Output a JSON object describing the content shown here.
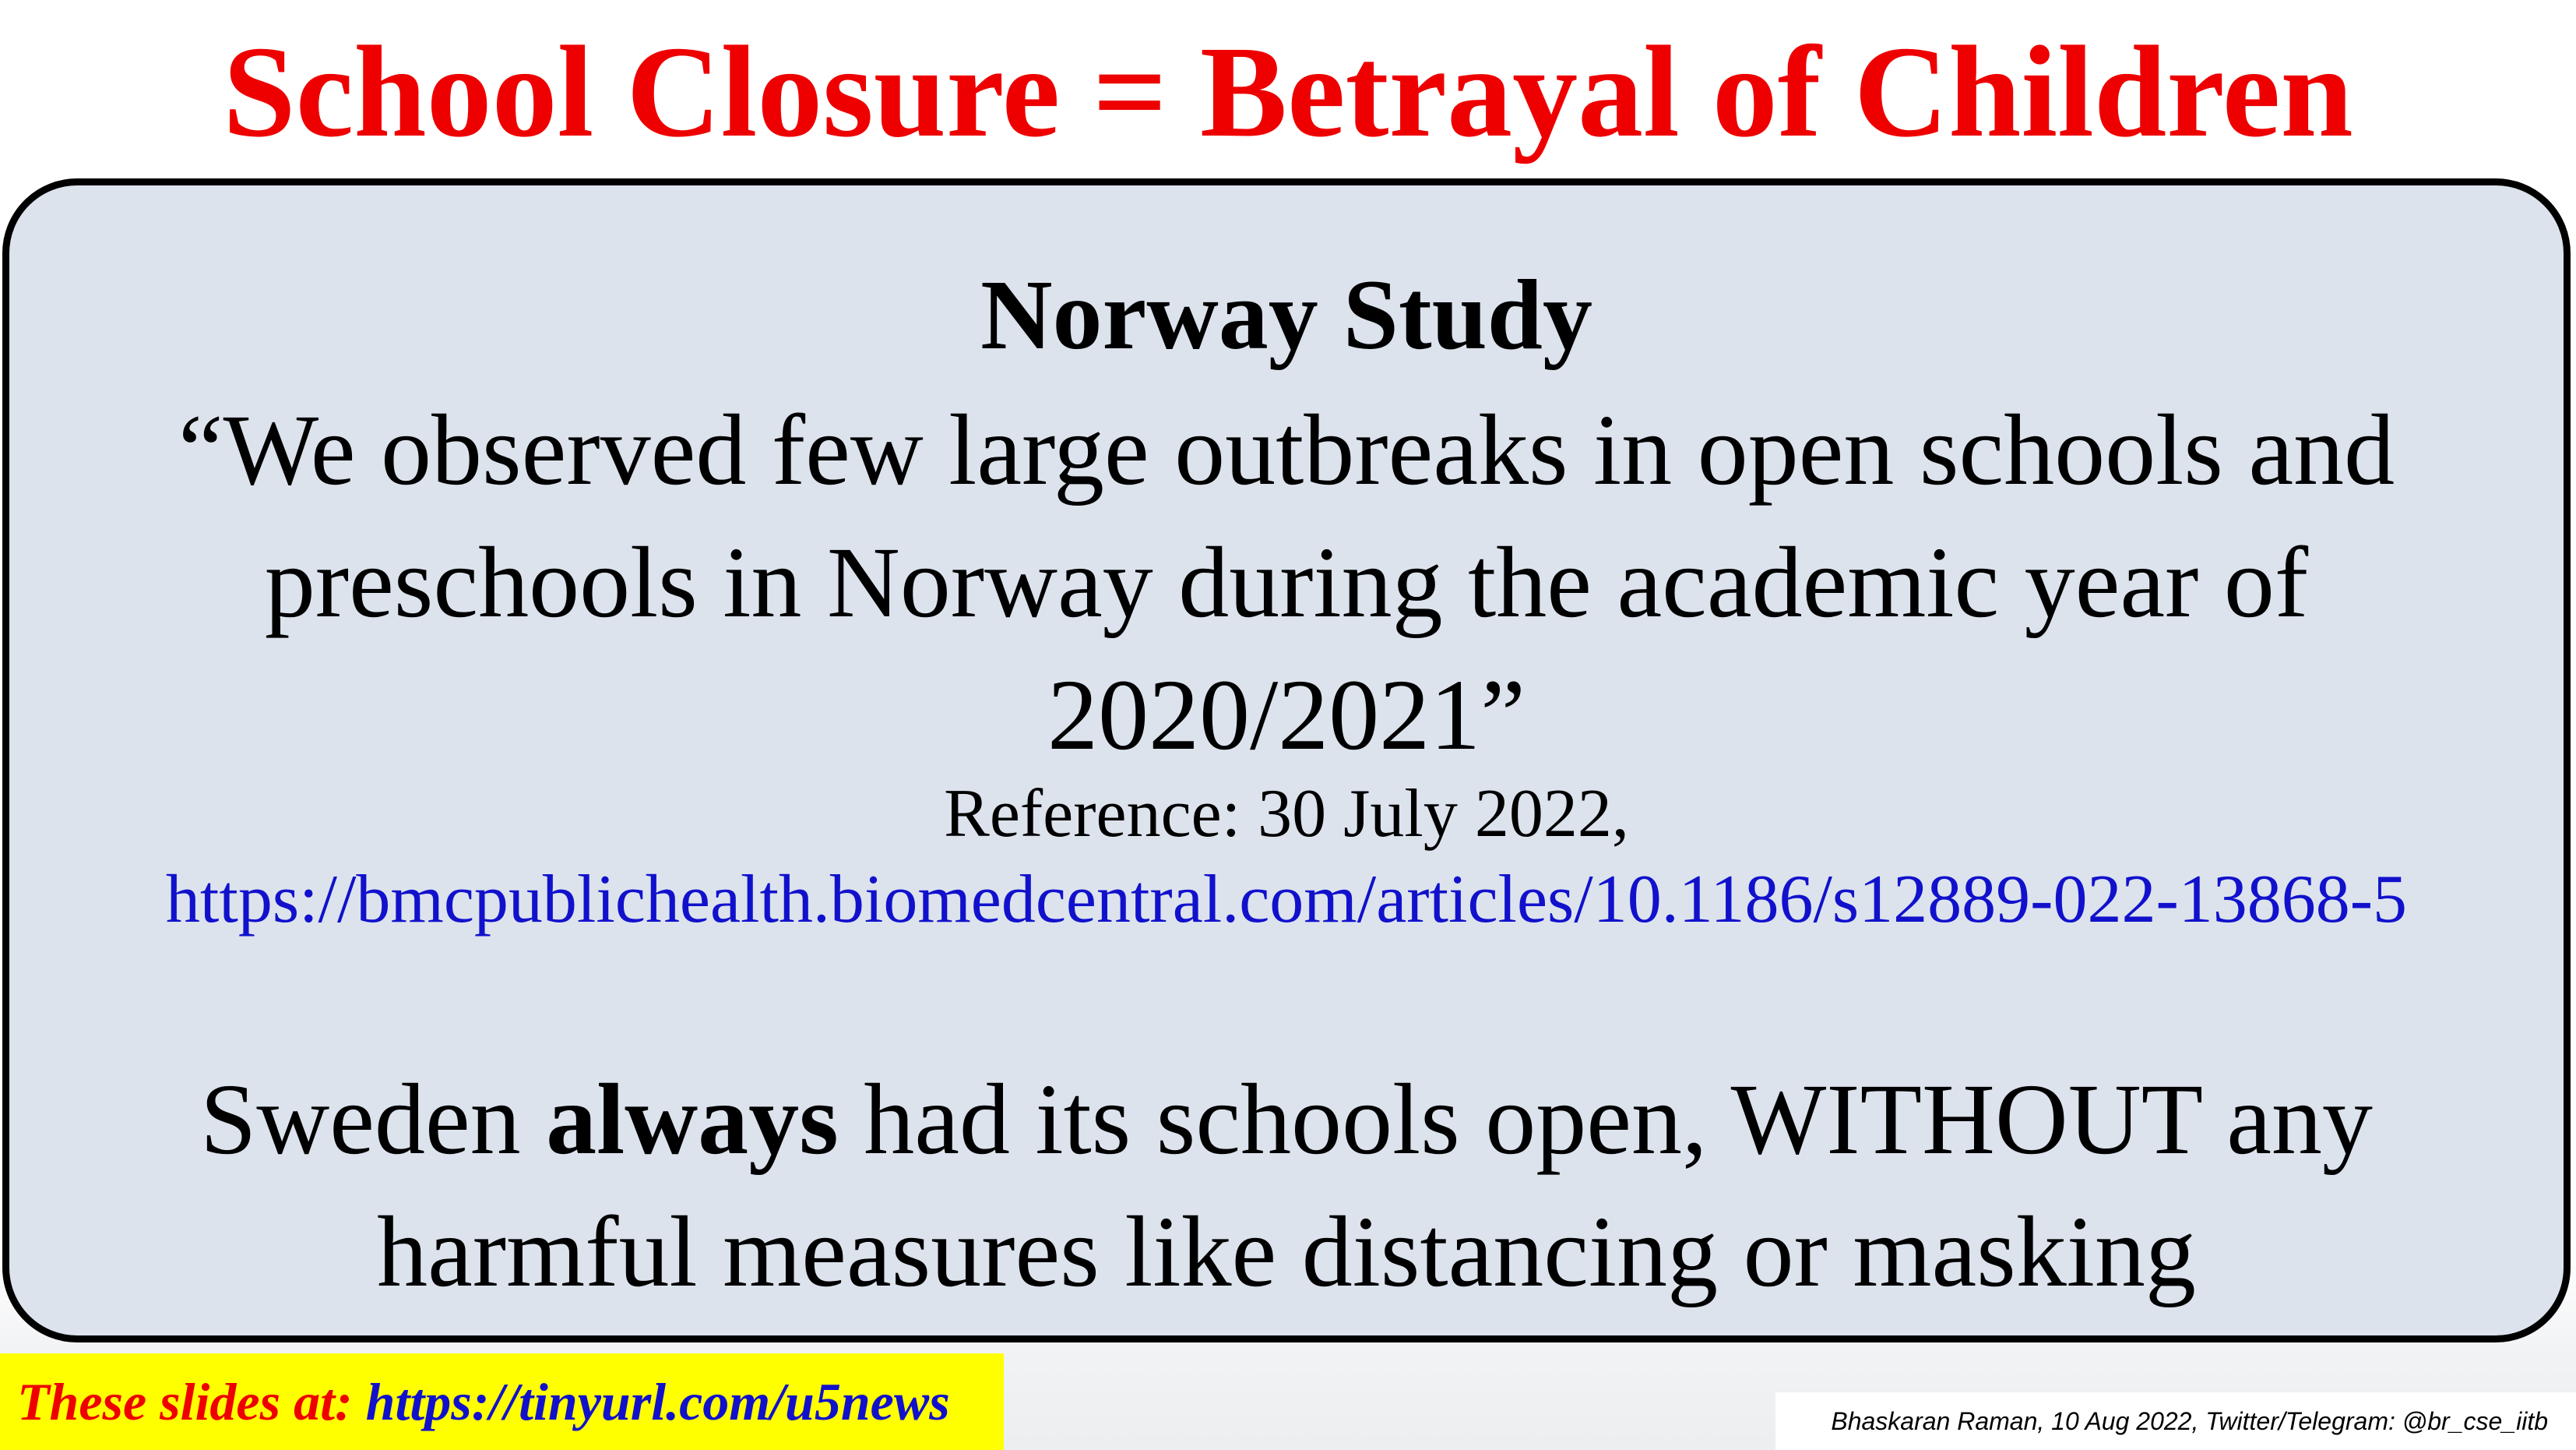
{
  "title": "School Closure = Betrayal of Children",
  "study": {
    "heading": "Norway Study",
    "quote_lines": [
      "“We observed few large outbreaks in open schools and",
      "preschools in Norway during the academic year of",
      "2020/2021”"
    ],
    "reference_label": "Reference: 30 July 2022,",
    "reference_url": "https://bmcpublichealth.biomedcentral.com/articles/10.1186/s12889-022-13868-5"
  },
  "sweden": {
    "line1_before": "Sweden ",
    "line1_bold": "always",
    "line1_after": " had its schools open, WITHOUT any",
    "line2": "harmful measures like distancing or masking"
  },
  "footer": {
    "slides_label": "These slides at: ",
    "slides_link": "https://tinyurl.com/u5news",
    "credit": "Bhaskaran Raman, 10 Aug 2022, Twitter/Telegram: @br_cse_iitb"
  },
  "colors": {
    "title": "#ee0000",
    "link": "#1111cc",
    "panel": "#dce3ed",
    "slides_box": "#ffff00"
  }
}
